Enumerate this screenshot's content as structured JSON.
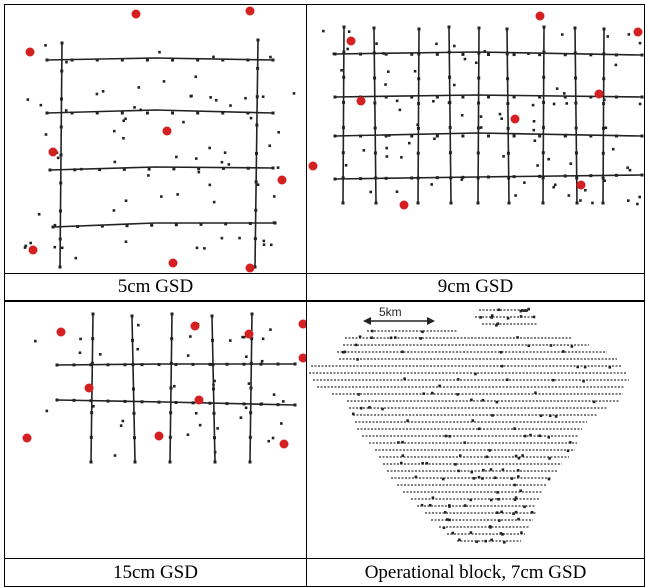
{
  "panels": [
    {
      "caption": "5cm GSD"
    },
    {
      "caption": "9cm GSD"
    },
    {
      "caption": "15cm GSD"
    },
    {
      "caption": "Operational block, 7cm GSD",
      "scale_label": "5km"
    }
  ],
  "colors": {
    "control_point": "#d42020",
    "tie_point": "#222222",
    "strip_line": "#222222",
    "grid_line": "#000000",
    "background": "#ffffff"
  }
}
